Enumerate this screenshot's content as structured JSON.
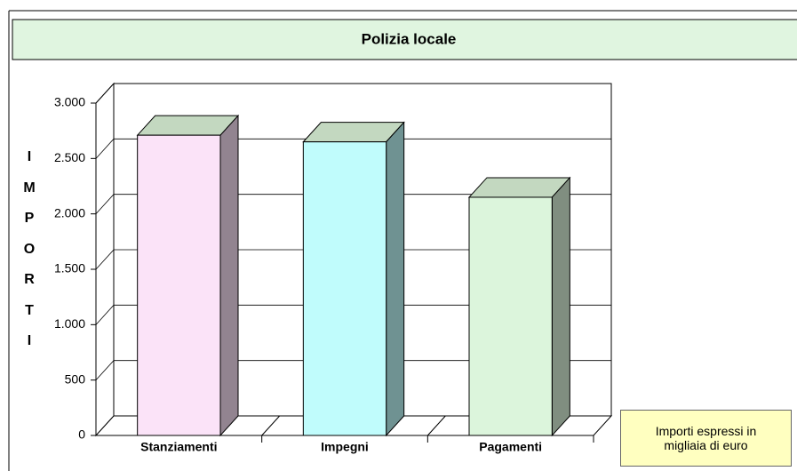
{
  "chart_data": {
    "type": "bar3d",
    "title": "Polizia locale",
    "y_axis_label": "IMPORTI",
    "categories": [
      "Stanziamenti",
      "Impegni",
      "Pagamenti"
    ],
    "values": [
      2710,
      2650,
      2150
    ],
    "colors": [
      "#fbe3f8",
      "#c0fcfc",
      "#dcf5dc"
    ],
    "top_color": "#c3d8c0",
    "ylim": [
      0,
      3000
    ],
    "yticks": [
      {
        "value": 0,
        "label": "0"
      },
      {
        "value": 500,
        "label": "500"
      },
      {
        "value": 1000,
        "label": "1.000"
      },
      {
        "value": 1500,
        "label": "1.500"
      },
      {
        "value": 2000,
        "label": "2.000"
      },
      {
        "value": 2500,
        "label": "2.500"
      },
      {
        "value": 3000,
        "label": "3.000"
      }
    ],
    "grid": true,
    "annotation": "Importi espressi in migliaia di euro"
  }
}
